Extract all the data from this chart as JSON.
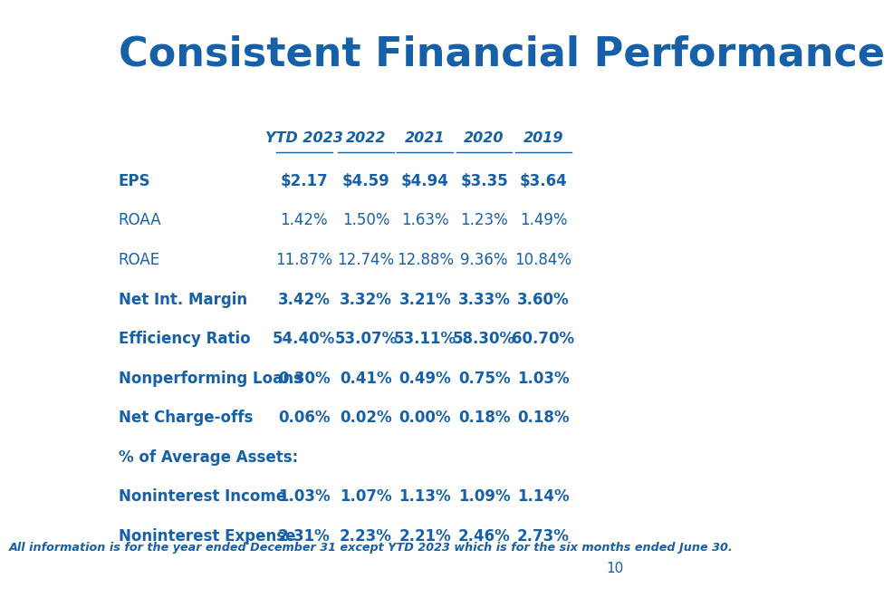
{
  "title": "Consistent Financial Performance",
  "title_color": "#1560A8",
  "title_fontsize": 32,
  "background_color": "#FFFFFF",
  "columns": [
    "YTD 2023",
    "2022",
    "2021",
    "2020",
    "2019"
  ],
  "rows": [
    {
      "label": "EPS",
      "bold": true,
      "values": [
        "$2.17",
        "$4.59",
        "$4.94",
        "$3.35",
        "$3.64"
      ]
    },
    {
      "label": "ROAA",
      "bold": false,
      "values": [
        "1.42%",
        "1.50%",
        "1.63%",
        "1.23%",
        "1.49%"
      ]
    },
    {
      "label": "ROAE",
      "bold": false,
      "values": [
        "11.87%",
        "12.74%",
        "12.88%",
        "9.36%",
        "10.84%"
      ]
    },
    {
      "label": "Net Int. Margin",
      "bold": true,
      "values": [
        "3.42%",
        "3.32%",
        "3.21%",
        "3.33%",
        "3.60%"
      ]
    },
    {
      "label": "Efficiency Ratio",
      "bold": true,
      "values": [
        "54.40%",
        "53.07%",
        "53.11%",
        "58.30%",
        "60.70%"
      ]
    },
    {
      "label": "Nonperforming Loans",
      "bold": true,
      "values": [
        "0.30%",
        "0.41%",
        "0.49%",
        "0.75%",
        "1.03%"
      ]
    },
    {
      "label": "Net Charge-offs",
      "bold": true,
      "values": [
        "0.06%",
        "0.02%",
        "0.00%",
        "0.18%",
        "0.18%"
      ]
    },
    {
      "label": "% of Average Assets:",
      "bold": true,
      "values": [
        "",
        "",
        "",
        "",
        ""
      ]
    },
    {
      "label": "Noninterest Income",
      "bold": true,
      "values": [
        "1.03%",
        "1.07%",
        "1.13%",
        "1.09%",
        "1.14%"
      ]
    },
    {
      "label": "Noninterest Expense",
      "bold": true,
      "values": [
        "2.31%",
        "2.23%",
        "2.21%",
        "2.46%",
        "2.73%"
      ]
    }
  ],
  "footer": "All information is for the year ended December 31 except YTD 2023 which is for the six months ended June 30.",
  "page_number": "10",
  "text_color": "#1560A8"
}
